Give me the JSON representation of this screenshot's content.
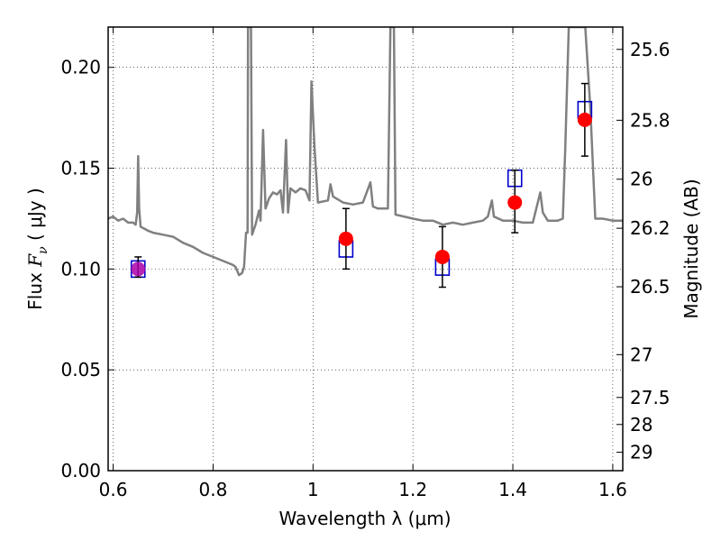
{
  "chart_data": {
    "type": "scatter",
    "title": "",
    "xlabel": "Wavelength  λ (μm)",
    "ylabel_left": {
      "prefix": "Flux  ",
      "math": "F",
      "sub": "ν",
      "suffix": "  ( μJy )"
    },
    "ylabel_right": "Magnitude (AB)",
    "xlim": [
      0.59,
      1.62
    ],
    "ylim": [
      0.0,
      0.22
    ],
    "grid": true,
    "x_ticks": [
      {
        "value": 0.6,
        "label": "0.6"
      },
      {
        "value": 0.8,
        "label": "0.8"
      },
      {
        "value": 1.0,
        "label": "1"
      },
      {
        "value": 1.2,
        "label": "1.2"
      },
      {
        "value": 1.4,
        "label": "1.4"
      },
      {
        "value": 1.6,
        "label": "1.6"
      }
    ],
    "y_ticks": [
      {
        "value": 0.0,
        "label": "0.00"
      },
      {
        "value": 0.05,
        "label": "0.05"
      },
      {
        "value": 0.1,
        "label": "0.10"
      },
      {
        "value": 0.15,
        "label": "0.15"
      },
      {
        "value": 0.2,
        "label": "0.20"
      }
    ],
    "mag_ticks": [
      {
        "value": 25.6,
        "label": "25.6"
      },
      {
        "value": 25.8,
        "label": "25.8"
      },
      {
        "value": 26.0,
        "label": "26"
      },
      {
        "value": 26.2,
        "label": "26.2"
      },
      {
        "value": 26.5,
        "label": "26.5"
      },
      {
        "value": 27.0,
        "label": "27"
      },
      {
        "value": 27.5,
        "label": "27.5"
      },
      {
        "value": 28.0,
        "label": "28"
      },
      {
        "value": 29.0,
        "label": "29"
      }
    ],
    "mag_zeropoint": 23.9,
    "colors": {
      "sed": "#808080",
      "observed": "#ff0000",
      "model": "#0000cc",
      "error": "#000000",
      "overlap": "#aa00aa"
    },
    "series": [
      {
        "kind": "line",
        "points": [
          [
            0.59,
            0.125
          ],
          [
            0.6,
            0.126
          ],
          [
            0.61,
            0.124
          ],
          [
            0.62,
            0.125
          ],
          [
            0.63,
            0.123
          ],
          [
            0.64,
            0.123
          ],
          [
            0.645,
            0.122
          ],
          [
            0.648,
            0.128
          ],
          [
            0.65,
            0.156
          ],
          [
            0.652,
            0.13
          ],
          [
            0.655,
            0.121
          ],
          [
            0.67,
            0.119
          ],
          [
            0.68,
            0.118
          ],
          [
            0.7,
            0.117
          ],
          [
            0.72,
            0.116
          ],
          [
            0.74,
            0.113
          ],
          [
            0.76,
            0.111
          ],
          [
            0.78,
            0.108
          ],
          [
            0.8,
            0.106
          ],
          [
            0.82,
            0.104
          ],
          [
            0.84,
            0.102
          ],
          [
            0.845,
            0.101
          ],
          [
            0.852,
            0.097
          ],
          [
            0.858,
            0.098
          ],
          [
            0.862,
            0.101
          ],
          [
            0.866,
            0.118
          ],
          [
            0.869,
            0.118
          ],
          [
            0.87,
            0.22
          ],
          [
            0.876,
            0.22
          ],
          [
            0.878,
            0.117
          ],
          [
            0.885,
            0.122
          ],
          [
            0.892,
            0.129
          ],
          [
            0.895,
            0.124
          ],
          [
            0.9,
            0.169
          ],
          [
            0.905,
            0.13
          ],
          [
            0.912,
            0.135
          ],
          [
            0.92,
            0.138
          ],
          [
            0.928,
            0.137
          ],
          [
            0.935,
            0.139
          ],
          [
            0.94,
            0.128
          ],
          [
            0.946,
            0.164
          ],
          [
            0.95,
            0.128
          ],
          [
            0.955,
            0.14
          ],
          [
            0.965,
            0.138
          ],
          [
            0.975,
            0.14
          ],
          [
            0.985,
            0.139
          ],
          [
            0.993,
            0.134
          ],
          [
            0.997,
            0.193
          ],
          [
            1.003,
            0.16
          ],
          [
            1.01,
            0.133
          ],
          [
            1.03,
            0.134
          ],
          [
            1.035,
            0.142
          ],
          [
            1.04,
            0.136
          ],
          [
            1.06,
            0.133
          ],
          [
            1.08,
            0.132
          ],
          [
            1.1,
            0.133
          ],
          [
            1.115,
            0.143
          ],
          [
            1.12,
            0.131
          ],
          [
            1.13,
            0.13
          ],
          [
            1.15,
            0.13
          ],
          [
            1.155,
            0.22
          ],
          [
            1.162,
            0.22
          ],
          [
            1.165,
            0.127
          ],
          [
            1.2,
            0.125
          ],
          [
            1.22,
            0.124
          ],
          [
            1.24,
            0.124
          ],
          [
            1.26,
            0.122
          ],
          [
            1.28,
            0.123
          ],
          [
            1.3,
            0.122
          ],
          [
            1.32,
            0.123
          ],
          [
            1.34,
            0.124
          ],
          [
            1.35,
            0.126
          ],
          [
            1.358,
            0.134
          ],
          [
            1.362,
            0.126
          ],
          [
            1.38,
            0.124
          ],
          [
            1.4,
            0.124
          ],
          [
            1.42,
            0.123
          ],
          [
            1.44,
            0.123
          ],
          [
            1.455,
            0.138
          ],
          [
            1.46,
            0.128
          ],
          [
            1.47,
            0.124
          ],
          [
            1.49,
            0.124
          ],
          [
            1.5,
            0.125
          ],
          [
            1.505,
            0.16
          ],
          [
            1.512,
            0.22
          ],
          [
            1.52,
            0.22
          ],
          [
            1.535,
            0.22
          ],
          [
            1.545,
            0.22
          ],
          [
            1.555,
            0.18
          ],
          [
            1.565,
            0.125
          ],
          [
            1.58,
            0.125
          ],
          [
            1.6,
            0.124
          ],
          [
            1.62,
            0.124
          ]
        ]
      },
      {
        "kind": "errorbar",
        "x": [
          0.65,
          1.066,
          1.259,
          1.404,
          1.544
        ],
        "y": [
          0.1,
          0.115,
          0.106,
          0.133,
          0.174
        ],
        "yerr_low": [
          0.004,
          0.015,
          0.015,
          0.015,
          0.018
        ],
        "yerr_high": [
          0.006,
          0.015,
          0.015,
          0.016,
          0.018
        ]
      },
      {
        "kind": "model",
        "x": [
          0.65,
          1.066,
          1.259,
          1.404,
          1.544
        ],
        "y": [
          0.1,
          0.11,
          0.101,
          0.145,
          0.179
        ]
      }
    ]
  }
}
